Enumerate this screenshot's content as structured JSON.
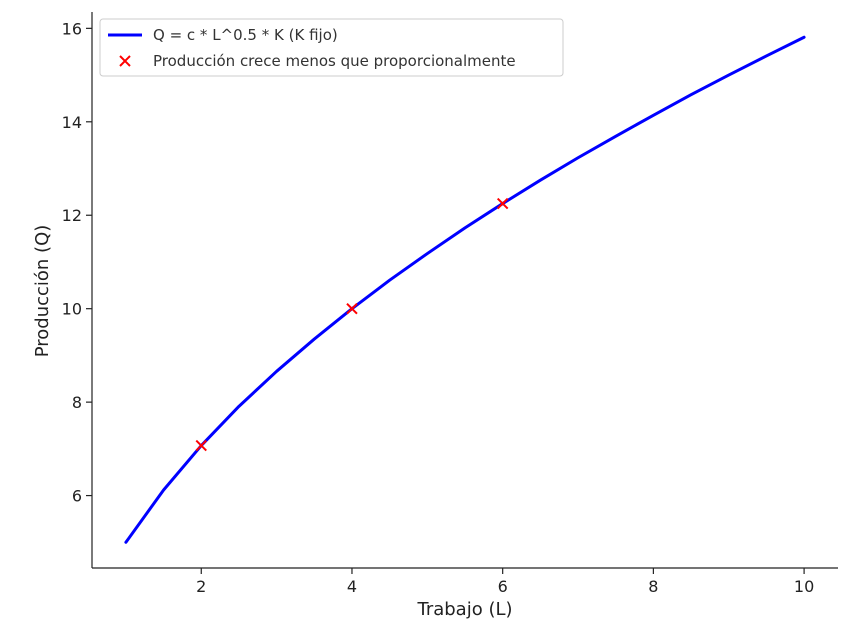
{
  "chart_data": {
    "type": "line",
    "title": "",
    "xlabel": "Trabajo (L)",
    "ylabel": "Producción (Q)",
    "xlim": [
      0.55,
      10.45
    ],
    "ylim": [
      4.45,
      16.35
    ],
    "xticks": [
      2,
      4,
      6,
      8,
      10
    ],
    "yticks": [
      6,
      8,
      10,
      12,
      14,
      16
    ],
    "grid": false,
    "legend_position": "top-left",
    "series": [
      {
        "name": "Q = c * L^0.5 * K (K fijo)",
        "kind": "line",
        "color": "#0000ff",
        "x": [
          1,
          1.5,
          2,
          2.5,
          3,
          3.5,
          4,
          4.5,
          5,
          5.5,
          6,
          6.5,
          7,
          7.5,
          8,
          8.5,
          9,
          9.5,
          10
        ],
        "y": [
          5.0,
          6.12,
          7.07,
          7.91,
          8.66,
          9.35,
          10.0,
          10.61,
          11.18,
          11.73,
          12.25,
          12.75,
          13.23,
          13.69,
          14.14,
          14.58,
          15.0,
          15.41,
          15.81
        ]
      },
      {
        "name": "Producción crece menos que proporcionalmente",
        "kind": "scatter",
        "marker": "x",
        "color": "#ff0000",
        "x": [
          2,
          4,
          6
        ],
        "y": [
          7.07,
          10.0,
          12.25
        ]
      }
    ]
  }
}
